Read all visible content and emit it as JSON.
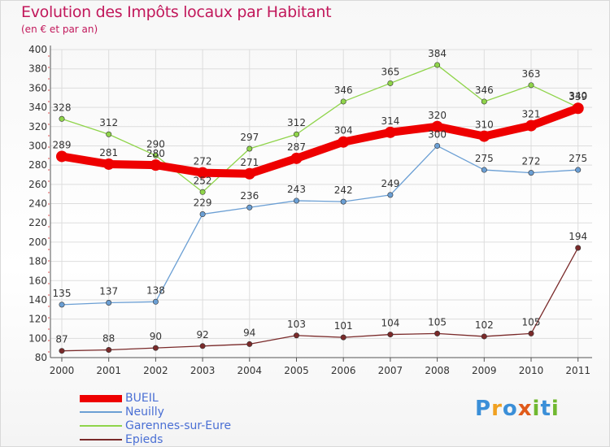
{
  "header": {
    "title": "Evolution des Impôts locaux par Habitant",
    "subtitle": "(en € et par an)"
  },
  "chart_data": {
    "type": "line",
    "title": "Evolution des Impôts locaux par Habitant",
    "subtitle": "(en € et par an)",
    "xlabel": "",
    "ylabel": "",
    "categories": [
      "2000",
      "2001",
      "2002",
      "2003",
      "2004",
      "2005",
      "2006",
      "2007",
      "2008",
      "2009",
      "2010",
      "2011"
    ],
    "ylim": [
      80,
      400
    ],
    "yticks": [
      80,
      100,
      120,
      140,
      160,
      180,
      200,
      220,
      240,
      260,
      280,
      300,
      320,
      340,
      360,
      380,
      400
    ],
    "grid": true,
    "legend_position": "bottom-left",
    "series": [
      {
        "name": "BUEIL",
        "color": "#ee0000",
        "values": [
          289,
          281,
          280,
          272,
          271,
          287,
          304,
          314,
          320,
          310,
          321,
          339
        ]
      },
      {
        "name": "Neuilly",
        "color": "#6b9fd4",
        "values": [
          135,
          137,
          138,
          229,
          236,
          243,
          242,
          249,
          300,
          275,
          272,
          275
        ]
      },
      {
        "name": "Garennes-sur-Eure",
        "color": "#8fd44a",
        "values": [
          328,
          312,
          290,
          252,
          297,
          312,
          346,
          365,
          384,
          346,
          363,
          340
        ]
      },
      {
        "name": "Epieds",
        "color": "#7a2a2a",
        "values": [
          87,
          88,
          90,
          92,
          94,
          103,
          101,
          104,
          105,
          102,
          105,
          194
        ]
      }
    ]
  },
  "logo": {
    "letters": [
      "P",
      "r",
      "o",
      "x",
      "i",
      "t",
      "i"
    ],
    "colors": [
      "#3b8fd8",
      "#f0a020",
      "#3b8fd8",
      "#e05a1a",
      "#70b830",
      "#3b8fd8",
      "#70b830"
    ]
  }
}
